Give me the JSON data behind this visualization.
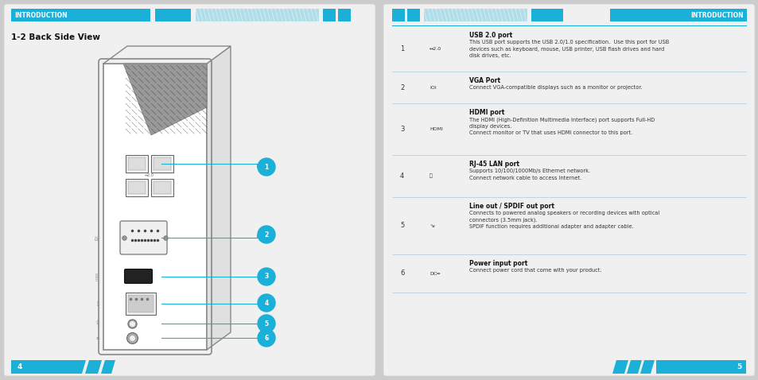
{
  "bg_color": "#cccccc",
  "page_bg_left": "#f0f0f0",
  "page_bg_right": "#f0f0f0",
  "cyan": "#1ab0d8",
  "cyan_light": "#b0dde8",
  "white": "#ffffff",
  "header_text": "INTRODUCTION",
  "title_left": "1-2 Back Side View",
  "page_num_left": "4",
  "page_num_right": "5",
  "rows": [
    {
      "num": "1",
      "icon": "↔2.0",
      "title": "USB 2.0 port",
      "desc1": "This USB port supports the USB 2.0/1.0 specification.  Use this port for USB",
      "desc2": "devices such as keyboard, mouse, USB printer, USB flash drives and hard",
      "desc3": "disk drives, etc.",
      "desc4": ""
    },
    {
      "num": "2",
      "icon": "IOI",
      "title": "VGA Port",
      "desc1": "Connect VGA-compatible displays such as a monitor or projector.",
      "desc2": "",
      "desc3": "",
      "desc4": ""
    },
    {
      "num": "3",
      "icon": "HDMI",
      "title": "HDMI port",
      "desc1": "The HDMI (High-Definition Multimedia Interface) port supports Full-HD",
      "desc2": "display devices.",
      "desc3": "Connect monitor or TV that uses HDMI connector to this port.",
      "desc4": ""
    },
    {
      "num": "4",
      "icon": "品",
      "title": "RJ-45 LAN port",
      "desc1": "Supports 10/100/1000Mb/s Ethernet network.",
      "desc2": "Connect network cable to access Internet.",
      "desc3": "",
      "desc4": ""
    },
    {
      "num": "5",
      "icon": "°ʁ",
      "title": "Line out / SPDIF out port",
      "desc1": "Connects to powered analog speakers or recording devices with optical",
      "desc2": "connectors (3.5mm jack).",
      "desc3": "SPDIF function requires additional adapter and adapter cable.",
      "desc4": ""
    },
    {
      "num": "6",
      "icon": "DC═",
      "title": "Power input port",
      "desc1": "Connect power cord that come with your product.",
      "desc2": "",
      "desc3": "",
      "desc4": ""
    }
  ]
}
